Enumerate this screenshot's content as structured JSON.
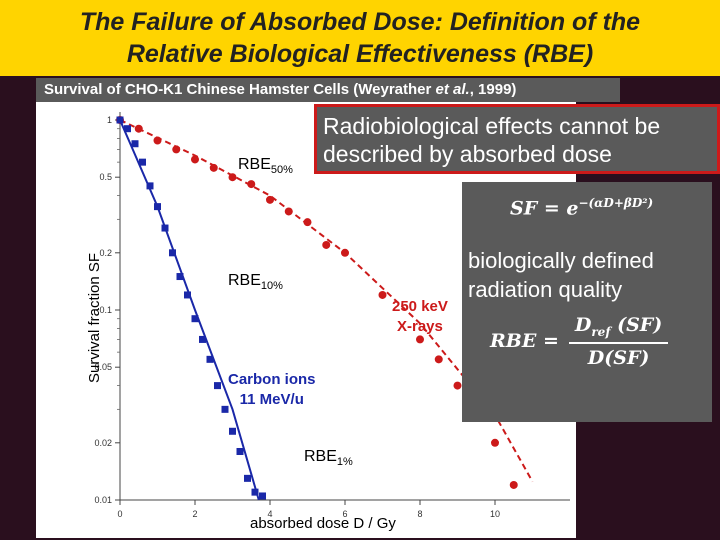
{
  "title": {
    "line1": "The Failure of Absorbed Dose: Definition of the",
    "line2": "Relative Biological Effectiveness (RBE)"
  },
  "subtitle": {
    "text": "Survival of CHO-K1 Chinese Hamster Cells (Weyrather ",
    "italic": "et al.",
    "rest": ", 1999)"
  },
  "callout": {
    "line1": "Radiobiological effects cannot be",
    "line2": "described by absorbed dose"
  },
  "definition": {
    "line1": "biologically defined",
    "line2": "radiation quality"
  },
  "rbe_labels": [
    {
      "main": "RBE",
      "sub": "50%"
    },
    {
      "main": "RBE",
      "sub": "10%"
    },
    {
      "main": "RBE",
      "sub": "1%"
    }
  ],
  "colors": {
    "title_bg": "#ffd400",
    "xray": "#cc1a1a",
    "carbon": "#1a28a8",
    "panel": "#5a5a5a"
  },
  "chart_data": {
    "type": "scatter",
    "xlabel": "absorbed dose D / Gy",
    "ylabel": "Survival fraction SF",
    "xlim": [
      0,
      12
    ],
    "ylim": [
      0.01,
      1
    ],
    "yscale": "log",
    "x_ticks": [
      "0",
      "2",
      "4",
      "6",
      "8",
      "10"
    ],
    "y_ticks": [
      "1",
      "0.5",
      "0.2",
      "0.1",
      "0.05",
      "0.02",
      "0.01"
    ],
    "grid": false,
    "series": [
      {
        "name": "250 keV X-rays",
        "color": "#cc1a1a",
        "points": [
          [
            0,
            1.0
          ],
          [
            0.5,
            0.9
          ],
          [
            1,
            0.78
          ],
          [
            1.5,
            0.7
          ],
          [
            2,
            0.62
          ],
          [
            2.5,
            0.56
          ],
          [
            3,
            0.5
          ],
          [
            3.5,
            0.46
          ],
          [
            4,
            0.38
          ],
          [
            4.5,
            0.33
          ],
          [
            5,
            0.29
          ],
          [
            5.5,
            0.22
          ],
          [
            6,
            0.2
          ],
          [
            7,
            0.12
          ],
          [
            8,
            0.07
          ],
          [
            8.5,
            0.055
          ],
          [
            9,
            0.04
          ],
          [
            9.5,
            0.03
          ],
          [
            10,
            0.02
          ],
          [
            10.5,
            0.012
          ]
        ],
        "fit": [
          [
            0,
            1.0
          ],
          [
            2,
            0.65
          ],
          [
            4,
            0.4
          ],
          [
            6,
            0.2
          ],
          [
            8,
            0.085
          ],
          [
            10,
            0.028
          ],
          [
            11,
            0.0125
          ]
        ]
      },
      {
        "name": "Carbon ions 11 MeV/u",
        "color": "#1a28a8",
        "points": [
          [
            0,
            1.0
          ],
          [
            0.2,
            0.9
          ],
          [
            0.4,
            0.75
          ],
          [
            0.6,
            0.6
          ],
          [
            0.8,
            0.45
          ],
          [
            1.0,
            0.35
          ],
          [
            1.2,
            0.27
          ],
          [
            1.4,
            0.2
          ],
          [
            1.6,
            0.15
          ],
          [
            1.8,
            0.12
          ],
          [
            2.0,
            0.09
          ],
          [
            2.2,
            0.07
          ],
          [
            2.4,
            0.055
          ],
          [
            2.6,
            0.04
          ],
          [
            2.8,
            0.03
          ],
          [
            3.0,
            0.023
          ],
          [
            3.2,
            0.018
          ],
          [
            3.4,
            0.013
          ],
          [
            3.6,
            0.011
          ],
          [
            3.8,
            0.0105
          ]
        ],
        "fit": [
          [
            0,
            1.0
          ],
          [
            1,
            0.35
          ],
          [
            2,
            0.1
          ],
          [
            3,
            0.03
          ],
          [
            3.7,
            0.01
          ]
        ]
      }
    ],
    "annotations": [
      {
        "text": "250 keV",
        "line2": "X-rays"
      },
      {
        "text": "Carbon ions",
        "line2": "11 MeV/u"
      }
    ]
  }
}
